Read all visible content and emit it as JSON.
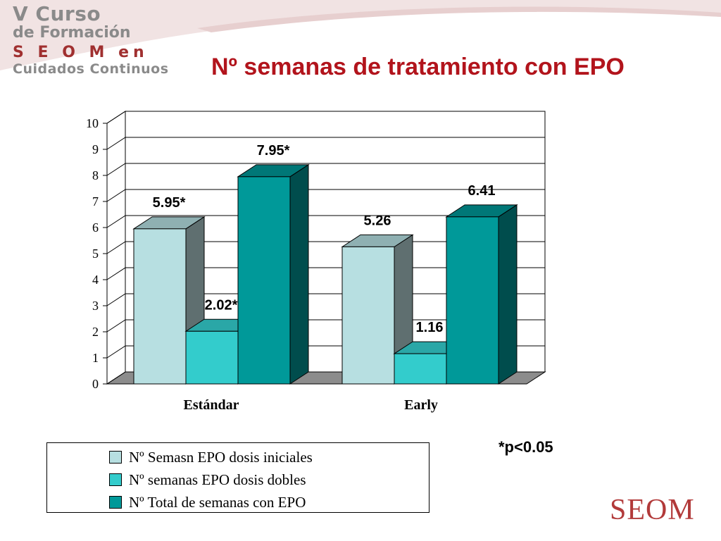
{
  "header": {
    "logo_lines": [
      "V Curso",
      "de Formación",
      "S E O M en",
      "Cuidados Continuos"
    ],
    "title": "Nº semanas de tratamiento con EPO"
  },
  "chart_data": {
    "type": "bar",
    "title": "Nº semanas de tratamiento con EPO",
    "categories": [
      "Estándar",
      "Early"
    ],
    "yticks": [
      "0",
      "1",
      "2",
      "3",
      "4",
      "5",
      "6",
      "7",
      "8",
      "9",
      "10"
    ],
    "ylim": [
      0,
      10
    ],
    "grid": true,
    "legend_position": "bottom-left",
    "series": [
      {
        "name": "Nº Semasn EPO dosis iniciales",
        "values": [
          5.95,
          5.26
        ],
        "labels": [
          "5.95*",
          "5.26"
        ],
        "color": "#b7dfe1",
        "side": "#5f6f70",
        "top": "#8fb0b2"
      },
      {
        "name": "Nº semanas EPO dosis dobles",
        "values": [
          2.02,
          1.16
        ],
        "labels": [
          "2.02*",
          "1.16"
        ],
        "color": "#33cccc",
        "side": "#1f8f8f",
        "top": "#2aa7a7"
      },
      {
        "name": "Nº Total de semanas con EPO",
        "values": [
          7.95,
          6.41
        ],
        "labels": [
          "7.95*",
          "6.41"
        ],
        "color": "#009999",
        "side": "#004d4d",
        "top": "#007777"
      }
    ]
  },
  "footnote": "*p<0.05",
  "brand": "SEOM"
}
